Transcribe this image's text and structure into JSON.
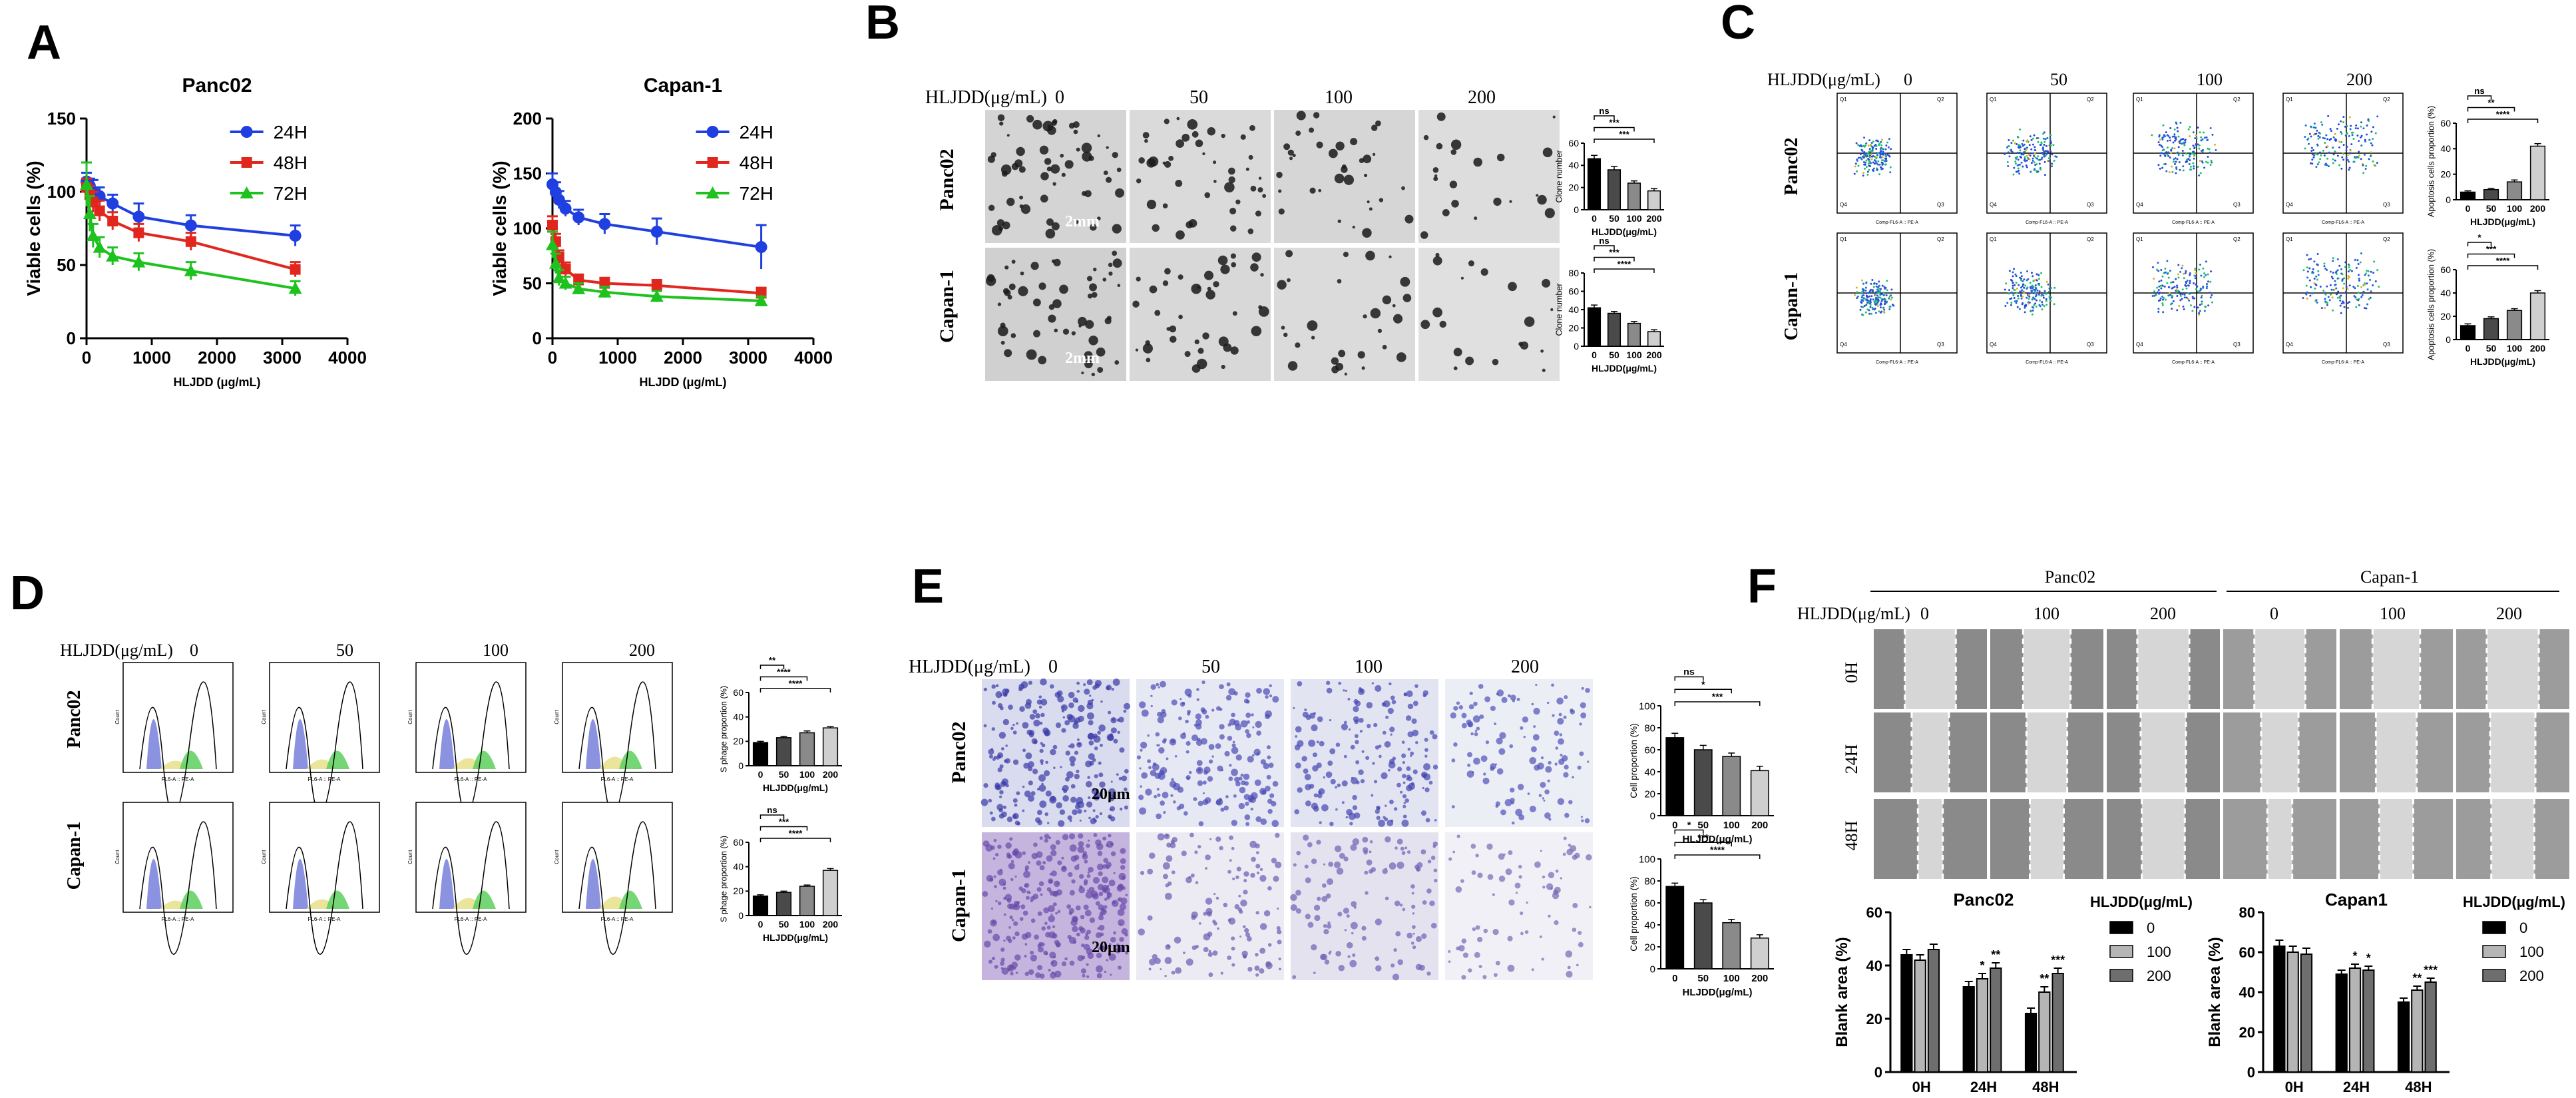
{
  "panel_letters": [
    "A",
    "B",
    "C",
    "D",
    "E",
    "F"
  ],
  "chart_data": [
    {
      "panel": "A",
      "type": "line",
      "title": "Panc02",
      "xlabel": "HLJDD (μg/mL)",
      "ylabel": "Viable cells (%)",
      "xlim": [
        0,
        4000
      ],
      "ylim": [
        0,
        150
      ],
      "xticks": [
        0,
        1000,
        2000,
        3000,
        4000
      ],
      "yticks": [
        0,
        50,
        100,
        150
      ],
      "legend_position": "top-right",
      "x": [
        0,
        50,
        100,
        200,
        400,
        800,
        1600,
        3200
      ],
      "series": [
        {
          "name": "24H",
          "color": "#1f3fe0",
          "marker": "circle",
          "values": [
            107,
            104,
            100,
            97,
            92,
            83,
            77,
            70
          ],
          "err": [
            6,
            5,
            8,
            6,
            6,
            9,
            7,
            7
          ]
        },
        {
          "name": "48H",
          "color": "#e0261d",
          "marker": "square",
          "values": [
            103,
            98,
            93,
            87,
            80,
            72,
            66,
            47
          ],
          "err": [
            6,
            6,
            7,
            7,
            6,
            6,
            6,
            5
          ]
        },
        {
          "name": "72H",
          "color": "#1ec21e",
          "marker": "triangle",
          "values": [
            105,
            85,
            70,
            62,
            56,
            52,
            46,
            34
          ],
          "err": [
            15,
            12,
            8,
            7,
            6,
            6,
            6,
            5
          ]
        }
      ]
    },
    {
      "panel": "A",
      "type": "line",
      "title": "Capan-1",
      "xlabel": "HLJDD (μg/mL)",
      "ylabel": "Viable cells (%)",
      "xlim": [
        0,
        4000
      ],
      "ylim": [
        0,
        200
      ],
      "xticks": [
        0,
        1000,
        2000,
        3000,
        4000
      ],
      "yticks": [
        0,
        50,
        100,
        150,
        200
      ],
      "legend_position": "top-right",
      "x": [
        0,
        50,
        100,
        200,
        400,
        800,
        1600,
        3200
      ],
      "series": [
        {
          "name": "24H",
          "color": "#1f3fe0",
          "marker": "circle",
          "values": [
            140,
            133,
            126,
            118,
            110,
            104,
            97,
            83
          ],
          "err": [
            10,
            9,
            8,
            7,
            7,
            9,
            12,
            20
          ]
        },
        {
          "name": "48H",
          "color": "#e0261d",
          "marker": "square",
          "values": [
            103,
            88,
            74,
            63,
            53,
            50,
            48,
            41
          ],
          "err": [
            8,
            7,
            6,
            6,
            5,
            5,
            5,
            5
          ]
        },
        {
          "name": "72H",
          "color": "#1ec21e",
          "marker": "triangle",
          "values": [
            85,
            68,
            55,
            50,
            45,
            42,
            38,
            34
          ],
          "err": [
            12,
            9,
            7,
            6,
            5,
            5,
            5,
            4
          ]
        }
      ]
    },
    {
      "panel": "B",
      "type": "bar",
      "row": "Panc02",
      "categories": [
        "0",
        "50",
        "100",
        "200"
      ],
      "values": [
        46,
        36,
        24,
        17
      ],
      "err": [
        3,
        3,
        2,
        2
      ],
      "ylabel": "Clone number",
      "xlabel": "HLJDD(μg/mL)",
      "ylim": [
        0,
        60
      ],
      "yticks": [
        0,
        20,
        40,
        60
      ],
      "sig": [
        "ns",
        "***",
        "***"
      ]
    },
    {
      "panel": "B",
      "type": "bar",
      "row": "Capan-1",
      "categories": [
        "0",
        "50",
        "100",
        "200"
      ],
      "values": [
        42,
        36,
        25,
        16
      ],
      "err": [
        3,
        2,
        2,
        2
      ],
      "ylabel": "Clone number",
      "xlabel": "HLJDD(μg/mL)",
      "ylim": [
        0,
        80
      ],
      "yticks": [
        0,
        20,
        40,
        60,
        80
      ],
      "sig": [
        "ns",
        "***",
        "****"
      ]
    },
    {
      "panel": "C",
      "type": "bar",
      "row": "Panc02",
      "categories": [
        "0",
        "50",
        "100",
        "200"
      ],
      "values": [
        6,
        8,
        14,
        42
      ],
      "err": [
        1,
        1,
        1.5,
        2
      ],
      "ylabel": "Apoptosis cells proportion (%)",
      "xlabel": "HLJDD(μg/mL)",
      "ylim": [
        0,
        60
      ],
      "yticks": [
        0,
        20,
        40,
        60
      ],
      "sig": [
        "ns",
        "**",
        "****"
      ]
    },
    {
      "panel": "C",
      "type": "bar",
      "row": "Capan-1",
      "categories": [
        "0",
        "50",
        "100",
        "200"
      ],
      "values": [
        12,
        18,
        25,
        40
      ],
      "err": [
        1.5,
        1.5,
        1.5,
        2
      ],
      "ylabel": "Apoptosis cells proportion (%)",
      "xlabel": "HLJDD(μg/mL)",
      "ylim": [
        0,
        60
      ],
      "yticks": [
        0,
        20,
        40,
        60
      ],
      "sig": [
        "*",
        "***",
        "****"
      ]
    },
    {
      "panel": "D",
      "type": "bar",
      "row": "Panc02",
      "categories": [
        "0",
        "50",
        "100",
        "200"
      ],
      "values": [
        19,
        23,
        27,
        31
      ],
      "err": [
        1,
        1,
        1.5,
        1
      ],
      "ylabel": "S phage proportion (%)",
      "xlabel": "HLJDD(μg/mL)",
      "ylim": [
        0,
        60
      ],
      "yticks": [
        0,
        20,
        40,
        60
      ],
      "sig": [
        "**",
        "****",
        "****"
      ]
    },
    {
      "panel": "D",
      "type": "bar",
      "row": "Capan-1",
      "categories": [
        "0",
        "50",
        "100",
        "200"
      ],
      "values": [
        16,
        19,
        24,
        37
      ],
      "err": [
        1,
        1,
        1,
        1.5
      ],
      "ylabel": "S phage proportion (%)",
      "xlabel": "HLJDD(μg/mL)",
      "ylim": [
        0,
        60
      ],
      "yticks": [
        0,
        20,
        40,
        60
      ],
      "sig": [
        "ns",
        "***",
        "****"
      ]
    },
    {
      "panel": "E",
      "type": "bar",
      "row": "Panc02",
      "categories": [
        "0",
        "50",
        "100",
        "200"
      ],
      "values": [
        71,
        60,
        54,
        41
      ],
      "err": [
        4,
        4,
        3,
        4
      ],
      "ylabel": "Cell proportion (%)",
      "xlabel": "HLJDD(μg/mL)",
      "ylim": [
        0,
        100
      ],
      "yticks": [
        0,
        20,
        40,
        60,
        80,
        100
      ],
      "sig": [
        "ns",
        "*",
        "***"
      ]
    },
    {
      "panel": "E",
      "type": "bar",
      "row": "Capan-1",
      "categories": [
        "0",
        "50",
        "100",
        "200"
      ],
      "values": [
        75,
        60,
        42,
        28
      ],
      "err": [
        3,
        3,
        3,
        3
      ],
      "ylabel": "Cell proportion (%)",
      "xlabel": "HLJDD(μg/mL)",
      "ylim": [
        0,
        100
      ],
      "yticks": [
        0,
        20,
        40,
        60,
        80,
        100
      ],
      "sig": [
        "*",
        "***",
        "****"
      ]
    },
    {
      "panel": "F",
      "type": "bar",
      "title": "Panc02",
      "ylabel": "Blank area (%)",
      "categories": [
        "0H",
        "24H",
        "48H"
      ],
      "legend_title": "HLJDD(μg/mL)",
      "ylim": [
        0,
        60
      ],
      "yticks": [
        0,
        20,
        40,
        60
      ],
      "series": [
        {
          "name": "0",
          "color": "#000000",
          "values": [
            44,
            32,
            22
          ],
          "err": [
            2,
            2,
            2
          ]
        },
        {
          "name": "100",
          "color": "#b5b5b5",
          "values": [
            42,
            35,
            30
          ],
          "err": [
            2,
            2,
            2
          ]
        },
        {
          "name": "200",
          "color": "#6e6e6e",
          "values": [
            46,
            39,
            37
          ],
          "err": [
            2,
            2,
            2
          ]
        }
      ],
      "sig": [
        [
          "",
          "",
          ""
        ],
        [
          "",
          "*",
          "**"
        ],
        [
          "",
          "**",
          "***"
        ]
      ]
    },
    {
      "panel": "F",
      "type": "bar",
      "title": "Capan1",
      "ylabel": "Blank area (%)",
      "categories": [
        "0H",
        "24H",
        "48H"
      ],
      "legend_title": "HLJDD(μg/mL)",
      "ylim": [
        0,
        80
      ],
      "yticks": [
        0,
        20,
        40,
        60,
        80
      ],
      "series": [
        {
          "name": "0",
          "color": "#000000",
          "values": [
            63,
            49,
            35
          ],
          "err": [
            3,
            2,
            2
          ]
        },
        {
          "name": "100",
          "color": "#b5b5b5",
          "values": [
            60,
            52,
            41
          ],
          "err": [
            3,
            2,
            2
          ]
        },
        {
          "name": "200",
          "color": "#6e6e6e",
          "values": [
            59,
            51,
            45
          ],
          "err": [
            3,
            2,
            2
          ]
        }
      ],
      "sig": [
        [
          "",
          "",
          ""
        ],
        [
          "",
          "*",
          "*"
        ],
        [
          "",
          "**",
          "***"
        ]
      ]
    }
  ],
  "dose_header": {
    "label": "HLJDD(μg/mL)",
    "doses": [
      "0",
      "50",
      "100",
      "200"
    ]
  },
  "row_labels": [
    "Panc02",
    "Capan-1"
  ],
  "panel_F": {
    "group_titles": [
      "Panc02",
      "Capan-1"
    ],
    "dose_header_label": "HLJDD(μg/mL)",
    "doses": [
      "0",
      "100",
      "200"
    ],
    "time_labels": [
      "0H",
      "24H",
      "48H"
    ]
  },
  "scale_bars": {
    "B": "2mm",
    "E": "20μm"
  },
  "flow": {
    "quadrant_labels": [
      "Q1",
      "Q2",
      "Q3",
      "Q4"
    ],
    "x_axis_label": "Comp-FL6-A :: PE-A",
    "y_axis_label": "Comp-FL9-A :: FITC-A",
    "cycle_x_label": "FL6-A :: PE-A",
    "cycle_y_label": "Count"
  }
}
